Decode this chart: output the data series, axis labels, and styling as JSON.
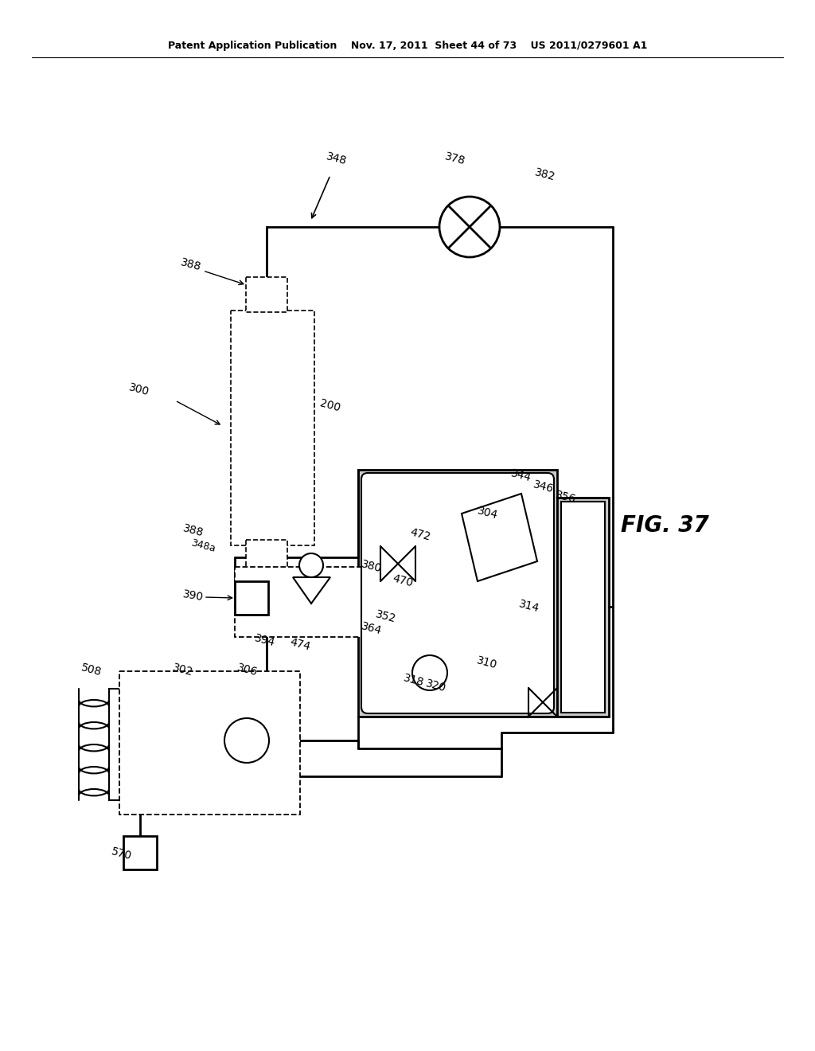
{
  "bg_color": "#ffffff",
  "header": "Patent Application Publication    Nov. 17, 2011  Sheet 44 of 73    US 2011/0279601 A1",
  "fig_label": "FIG. 37",
  "gray": "#c8c8c8",
  "dark_gray": "#999999"
}
